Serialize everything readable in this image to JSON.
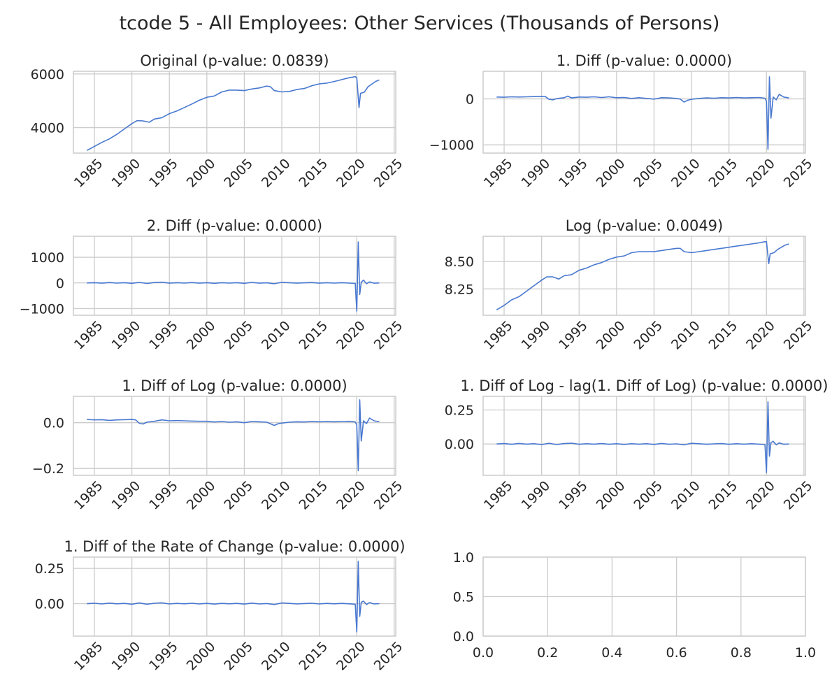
{
  "figure": {
    "suptitle": "tcode 5 - All Employees: Other Services (Thousands of Persons)",
    "line_color": "#4878d0",
    "grid_color": "#cccccc"
  },
  "chart_data": [
    {
      "type": "line",
      "title": "Original (p-value: 0.0839)",
      "xticks": [
        "1985",
        "1990",
        "1995",
        "2000",
        "2005",
        "2010",
        "2015",
        "2020",
        "2025"
      ],
      "yticks": [
        {
          "v": 4000,
          "label": "4000"
        },
        {
          "v": 6000,
          "label": "6000"
        }
      ],
      "xlim": [
        1982.2,
        2025.2
      ],
      "ylim": [
        3050,
        6100
      ],
      "series": [
        {
          "x": [
            1984.0,
            1985.0,
            1986.0,
            1987.0,
            1988.0,
            1989.0,
            1990.0,
            1990.7,
            1991.5,
            1992.3,
            1993.0,
            1994.0,
            1995.0,
            1996.0,
            1997.0,
            1998.0,
            1999.0,
            2000.0,
            2001.0,
            2002.0,
            2003.0,
            2004.0,
            2005.0,
            2006.0,
            2007.0,
            2008.0,
            2008.5,
            2009.0,
            2010.0,
            2011.0,
            2012.0,
            2013.0,
            2014.0,
            2015.0,
            2016.0,
            2017.0,
            2018.0,
            2019.0,
            2019.8,
            2020.0,
            2020.3,
            2020.5,
            2021.0,
            2021.5,
            2022.0,
            2022.5,
            2023.0
          ],
          "y": [
            3150,
            3300,
            3450,
            3580,
            3750,
            3950,
            4150,
            4260,
            4250,
            4200,
            4320,
            4370,
            4520,
            4620,
            4750,
            4880,
            5020,
            5130,
            5180,
            5330,
            5400,
            5400,
            5380,
            5440,
            5480,
            5550,
            5520,
            5380,
            5330,
            5350,
            5420,
            5460,
            5560,
            5630,
            5660,
            5720,
            5790,
            5860,
            5900,
            5860,
            4750,
            5280,
            5320,
            5520,
            5620,
            5720,
            5780
          ]
        }
      ]
    },
    {
      "type": "line",
      "title": "1. Diff (p-value: 0.0000)",
      "xticks": [
        "1985",
        "1990",
        "1995",
        "2000",
        "2005",
        "2010",
        "2015",
        "2020",
        "2025"
      ],
      "yticks": [
        {
          "v": -1000,
          "label": "−1000"
        },
        {
          "v": 0,
          "label": "0"
        }
      ],
      "xlim": [
        1982.2,
        2025.2
      ],
      "ylim": [
        -1180,
        600
      ],
      "series": [
        {
          "x": [
            1984.0,
            1985.0,
            1986.0,
            1987.0,
            1988.0,
            1989.0,
            1990.0,
            1990.5,
            1991.0,
            1991.5,
            1992.0,
            1993.0,
            1993.5,
            1994.0,
            1995.0,
            1996.0,
            1997.0,
            1998.0,
            1999.0,
            2000.0,
            2001.0,
            2002.0,
            2003.0,
            2004.0,
            2005.0,
            2006.0,
            2007.0,
            2008.0,
            2008.5,
            2009.0,
            2009.5,
            2010.0,
            2011.0,
            2012.0,
            2013.0,
            2014.0,
            2015.0,
            2016.0,
            2017.0,
            2018.0,
            2019.0,
            2019.8,
            2020.0,
            2020.2,
            2020.4,
            2020.6,
            2020.9,
            2021.3,
            2021.7,
            2022.3,
            2023.0
          ],
          "y": [
            40,
            35,
            45,
            40,
            45,
            50,
            55,
            50,
            -10,
            -20,
            5,
            25,
            60,
            20,
            40,
            35,
            45,
            30,
            45,
            25,
            30,
            10,
            25,
            10,
            -5,
            25,
            20,
            10,
            -5,
            -70,
            -30,
            -10,
            10,
            20,
            15,
            25,
            20,
            30,
            20,
            25,
            30,
            15,
            -50,
            -1100,
            480,
            -420,
            40,
            -20,
            100,
            40,
            20
          ]
        }
      ]
    },
    {
      "type": "line",
      "title": "2. Diff (p-value: 0.0000)",
      "xticks": [
        "1985",
        "1990",
        "1995",
        "2000",
        "2005",
        "2010",
        "2015",
        "2020",
        "2025"
      ],
      "yticks": [
        {
          "v": -1000,
          "label": "−1000"
        },
        {
          "v": 0,
          "label": "0"
        },
        {
          "v": 1000,
          "label": "1000"
        }
      ],
      "xlim": [
        1982.2,
        2025.2
      ],
      "ylim": [
        -1260,
        1820
      ],
      "series": [
        {
          "x": [
            1984.0,
            1985.0,
            1986.0,
            1987.0,
            1988.0,
            1989.0,
            1990.0,
            1991.0,
            1992.0,
            1993.0,
            1994.0,
            1995.0,
            1996.0,
            1997.0,
            1998.0,
            1999.0,
            2000.0,
            2001.0,
            2002.0,
            2003.0,
            2004.0,
            2005.0,
            2006.0,
            2007.0,
            2008.0,
            2009.0,
            2010.0,
            2011.0,
            2012.0,
            2013.0,
            2014.0,
            2015.0,
            2016.0,
            2017.0,
            2018.0,
            2019.0,
            2019.8,
            2020.0,
            2020.2,
            2020.4,
            2020.6,
            2020.9,
            2021.3,
            2021.7,
            2022.3,
            2023.0
          ],
          "y": [
            0,
            10,
            -10,
            15,
            -5,
            10,
            -15,
            20,
            -20,
            15,
            30,
            -10,
            10,
            -5,
            15,
            -10,
            10,
            -15,
            10,
            -5,
            10,
            -15,
            20,
            -10,
            5,
            -30,
            25,
            10,
            -10,
            5,
            15,
            -10,
            10,
            -5,
            10,
            -5,
            -20,
            -1100,
            1600,
            -450,
            30,
            110,
            -30,
            40,
            -10,
            0
          ]
        }
      ]
    },
    {
      "type": "line",
      "title": "Log (p-value: 0.0049)",
      "xticks": [
        "1985",
        "1990",
        "1995",
        "2000",
        "2005",
        "2010",
        "2015",
        "2020",
        "2025"
      ],
      "yticks": [
        {
          "v": 8.25,
          "label": "8.25"
        },
        {
          "v": 8.5,
          "label": "8.50"
        }
      ],
      "xlim": [
        1982.2,
        2025.2
      ],
      "ylim": [
        8.01,
        8.73
      ],
      "series": [
        {
          "x": [
            1984.0,
            1985.0,
            1986.0,
            1987.0,
            1988.0,
            1989.0,
            1990.0,
            1990.7,
            1991.5,
            1992.3,
            1993.0,
            1994.0,
            1995.0,
            1996.0,
            1997.0,
            1998.0,
            1999.0,
            2000.0,
            2001.0,
            2002.0,
            2003.0,
            2004.0,
            2005.0,
            2006.0,
            2007.0,
            2008.0,
            2008.5,
            2009.0,
            2010.0,
            2011.0,
            2012.0,
            2013.0,
            2014.0,
            2015.0,
            2016.0,
            2017.0,
            2018.0,
            2019.0,
            2019.8,
            2020.0,
            2020.3,
            2020.5,
            2021.0,
            2021.5,
            2022.0,
            2022.5,
            2023.0
          ],
          "y": [
            8.06,
            8.1,
            8.15,
            8.18,
            8.23,
            8.28,
            8.33,
            8.36,
            8.36,
            8.34,
            8.37,
            8.38,
            8.42,
            8.44,
            8.47,
            8.49,
            8.52,
            8.54,
            8.55,
            8.58,
            8.59,
            8.59,
            8.59,
            8.6,
            8.61,
            8.62,
            8.62,
            8.59,
            8.58,
            8.59,
            8.6,
            8.61,
            8.62,
            8.63,
            8.64,
            8.65,
            8.66,
            8.67,
            8.68,
            8.68,
            8.48,
            8.57,
            8.58,
            8.61,
            8.63,
            8.65,
            8.66
          ]
        }
      ]
    },
    {
      "type": "line",
      "title": "1. Diff of Log (p-value: 0.0000)",
      "xticks": [
        "1985",
        "1990",
        "1995",
        "2000",
        "2005",
        "2010",
        "2015",
        "2020",
        "2025"
      ],
      "yticks": [
        {
          "v": -0.2,
          "label": "−0.2"
        },
        {
          "v": 0,
          "label": "0.0"
        }
      ],
      "xlim": [
        1982.2,
        2025.2
      ],
      "ylim": [
        -0.23,
        0.115
      ],
      "series": [
        {
          "x": [
            1984.0,
            1985.0,
            1986.0,
            1987.0,
            1988.0,
            1989.0,
            1990.0,
            1990.5,
            1991.0,
            1991.5,
            1992.0,
            1993.0,
            1994.0,
            1995.0,
            1996.0,
            1997.0,
            1998.0,
            1999.0,
            2000.0,
            2001.0,
            2002.0,
            2003.0,
            2004.0,
            2005.0,
            2006.0,
            2007.0,
            2008.0,
            2009.0,
            2009.5,
            2010.0,
            2011.0,
            2012.0,
            2013.0,
            2014.0,
            2015.0,
            2016.0,
            2017.0,
            2018.0,
            2019.0,
            2019.8,
            2020.0,
            2020.2,
            2020.4,
            2020.6,
            2020.9,
            2021.3,
            2021.7,
            2022.3,
            2023.0
          ],
          "y": [
            0.014,
            0.012,
            0.013,
            0.01,
            0.012,
            0.013,
            0.014,
            0.012,
            -0.003,
            -0.006,
            0.002,
            0.006,
            0.012,
            0.008,
            0.009,
            0.008,
            0.007,
            0.006,
            0.006,
            0.003,
            0.005,
            0.002,
            0.004,
            0.0,
            0.005,
            0.004,
            0.002,
            -0.012,
            -0.005,
            -0.002,
            0.002,
            0.004,
            0.003,
            0.005,
            0.004,
            0.005,
            0.004,
            0.005,
            0.006,
            0.003,
            -0.01,
            -0.21,
            0.1,
            -0.08,
            0.008,
            -0.004,
            0.02,
            0.008,
            0.004
          ]
        }
      ]
    },
    {
      "type": "line",
      "title": "1. Diff of Log - lag(1. Diff of Log) (p-value: 0.0000)",
      "xticks": [
        "1985",
        "1990",
        "1995",
        "2000",
        "2005",
        "2010",
        "2015",
        "2020",
        "2025"
      ],
      "yticks": [
        {
          "v": 0,
          "label": "0.00"
        },
        {
          "v": 0.25,
          "label": "0.25"
        }
      ],
      "xlim": [
        1982.2,
        2025.2
      ],
      "ylim": [
        -0.23,
        0.35
      ],
      "series": [
        {
          "x": [
            1984.0,
            1985.0,
            1986.0,
            1987.0,
            1988.0,
            1989.0,
            1990.0,
            1991.0,
            1992.0,
            1993.0,
            1994.0,
            1995.0,
            1996.0,
            1997.0,
            1998.0,
            1999.0,
            2000.0,
            2001.0,
            2002.0,
            2003.0,
            2004.0,
            2005.0,
            2006.0,
            2007.0,
            2008.0,
            2009.0,
            2010.0,
            2011.0,
            2012.0,
            2013.0,
            2014.0,
            2015.0,
            2016.0,
            2017.0,
            2018.0,
            2019.0,
            2019.8,
            2020.0,
            2020.2,
            2020.4,
            2020.6,
            2020.9,
            2021.3,
            2021.7,
            2022.3,
            2023.0
          ],
          "y": [
            0.0,
            0.003,
            -0.002,
            0.004,
            -0.001,
            0.002,
            -0.004,
            0.005,
            -0.004,
            0.003,
            0.006,
            -0.002,
            0.002,
            -0.001,
            0.003,
            -0.002,
            0.002,
            -0.003,
            0.002,
            -0.001,
            0.002,
            -0.003,
            0.004,
            -0.002,
            0.001,
            -0.006,
            0.005,
            0.002,
            -0.002,
            0.001,
            0.003,
            -0.002,
            0.002,
            -0.001,
            0.002,
            -0.001,
            -0.004,
            -0.21,
            0.31,
            -0.09,
            0.01,
            0.02,
            -0.006,
            0.008,
            -0.002,
            0.0
          ]
        }
      ]
    },
    {
      "type": "line",
      "title": "1. Diff of the Rate of Change (p-value: 0.0000)",
      "xticks": [
        "1985",
        "1990",
        "1995",
        "2000",
        "2005",
        "2010",
        "2015",
        "2020",
        "2025"
      ],
      "yticks": [
        {
          "v": 0,
          "label": "0.00"
        },
        {
          "v": 0.25,
          "label": "0.25"
        }
      ],
      "xlim": [
        1982.2,
        2025.2
      ],
      "ylim": [
        -0.23,
        0.33
      ],
      "series": [
        {
          "x": [
            1984.0,
            1985.0,
            1986.0,
            1987.0,
            1988.0,
            1989.0,
            1990.0,
            1991.0,
            1992.0,
            1993.0,
            1994.0,
            1995.0,
            1996.0,
            1997.0,
            1998.0,
            1999.0,
            2000.0,
            2001.0,
            2002.0,
            2003.0,
            2004.0,
            2005.0,
            2006.0,
            2007.0,
            2008.0,
            2009.0,
            2010.0,
            2011.0,
            2012.0,
            2013.0,
            2014.0,
            2015.0,
            2016.0,
            2017.0,
            2018.0,
            2019.0,
            2019.8,
            2020.0,
            2020.2,
            2020.4,
            2020.6,
            2020.9,
            2021.3,
            2021.7,
            2022.3,
            2023.0
          ],
          "y": [
            0.0,
            0.003,
            -0.002,
            0.004,
            -0.001,
            0.002,
            -0.004,
            0.005,
            -0.004,
            0.003,
            0.006,
            -0.002,
            0.002,
            -0.001,
            0.003,
            -0.002,
            0.002,
            -0.003,
            0.002,
            -0.001,
            0.002,
            -0.003,
            0.004,
            -0.002,
            0.001,
            -0.006,
            0.005,
            0.002,
            -0.002,
            0.001,
            0.003,
            -0.002,
            0.002,
            -0.001,
            0.002,
            -0.001,
            -0.004,
            -0.2,
            0.3,
            -0.09,
            0.01,
            0.018,
            -0.006,
            0.008,
            -0.002,
            0.0
          ]
        }
      ]
    },
    {
      "type": "line",
      "title": "",
      "xticks": [
        "0.0",
        "0.2",
        "0.4",
        "0.6",
        "0.8",
        "1.0"
      ],
      "xtick_values": [
        0,
        0.2,
        0.4,
        0.6,
        0.8,
        1.0
      ],
      "yticks": [
        {
          "v": 0,
          "label": "0.0"
        },
        {
          "v": 0.5,
          "label": "0.5"
        },
        {
          "v": 1.0,
          "label": "1.0"
        }
      ],
      "xlim": [
        0,
        1
      ],
      "ylim": [
        0,
        1
      ],
      "series": []
    }
  ]
}
